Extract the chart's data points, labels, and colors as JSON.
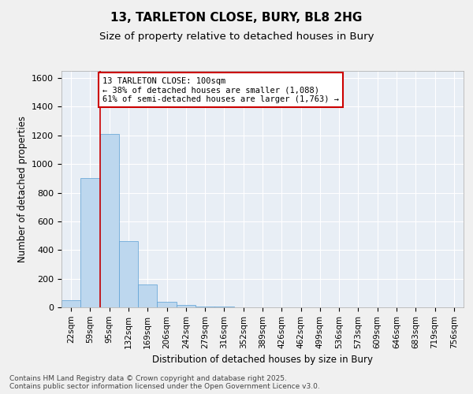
{
  "title_line1": "13, TARLETON CLOSE, BURY, BL8 2HG",
  "title_line2": "Size of property relative to detached houses in Bury",
  "xlabel": "Distribution of detached houses by size in Bury",
  "ylabel": "Number of detached properties",
  "bins": [
    "22sqm",
    "59sqm",
    "95sqm",
    "132sqm",
    "169sqm",
    "206sqm",
    "242sqm",
    "279sqm",
    "316sqm",
    "352sqm",
    "389sqm",
    "426sqm",
    "462sqm",
    "499sqm",
    "536sqm",
    "573sqm",
    "609sqm",
    "646sqm",
    "683sqm",
    "719sqm",
    "756sqm"
  ],
  "bar_values": [
    50,
    900,
    1210,
    460,
    160,
    40,
    15,
    6,
    3,
    1,
    0,
    0,
    0,
    0,
    0,
    0,
    0,
    0,
    0,
    0,
    0
  ],
  "bar_color": "#bdd7ee",
  "bar_edge_color": "#5a9fd4",
  "background_color": "#e8eef5",
  "grid_color": "#ffffff",
  "vline_x_bin": 2,
  "vline_color": "#cc0000",
  "annotation_text_line1": "13 TARLETON CLOSE: 100sqm",
  "annotation_text_line2": "← 38% of detached houses are smaller (1,088)",
  "annotation_text_line3": "61% of semi-detached houses are larger (1,763) →",
  "ylim_max": 1650,
  "yticks": [
    0,
    200,
    400,
    600,
    800,
    1000,
    1200,
    1400,
    1600
  ],
  "footer_text": "Contains HM Land Registry data © Crown copyright and database right 2025.\nContains public sector information licensed under the Open Government Licence v3.0."
}
